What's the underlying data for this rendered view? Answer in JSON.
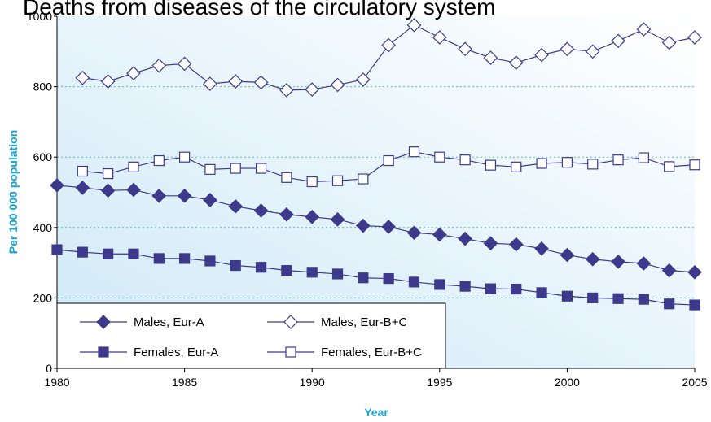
{
  "chart_data": {
    "type": "line",
    "title": "Deaths from diseases of the circulatory system",
    "x_label": "Year",
    "y_label": "Per 100 000 population",
    "x": [
      1980,
      1981,
      1982,
      1983,
      1984,
      1985,
      1986,
      1987,
      1988,
      1989,
      1990,
      1991,
      1992,
      1993,
      1994,
      1995,
      1996,
      1997,
      1998,
      1999,
      2000,
      2001,
      2002,
      2003,
      2004,
      2005
    ],
    "series": [
      {
        "name": "Males, Eur-A",
        "color": "#3d3a8c",
        "marker": "diamond",
        "filled": true,
        "values": [
          520,
          513,
          505,
          507,
          490,
          490,
          478,
          460,
          448,
          437,
          430,
          423,
          405,
          402,
          385,
          380,
          368,
          355,
          352,
          340,
          322,
          310,
          303,
          298,
          278,
          273
        ]
      },
      {
        "name": "Males, Eur-B+C",
        "color": "#3d3a8c",
        "marker": "diamond",
        "filled": false,
        "values": [
          null,
          825,
          815,
          838,
          860,
          865,
          808,
          815,
          812,
          790,
          792,
          805,
          820,
          918,
          975,
          940,
          907,
          882,
          868,
          890,
          907,
          900,
          930,
          963,
          925,
          940
        ]
      },
      {
        "name": "Females, Eur-A",
        "color": "#3d3a8c",
        "marker": "square",
        "filled": true,
        "values": [
          337,
          330,
          325,
          325,
          312,
          312,
          305,
          292,
          287,
          278,
          273,
          268,
          257,
          255,
          245,
          238,
          233,
          226,
          225,
          215,
          205,
          200,
          198,
          196,
          183,
          180
        ]
      },
      {
        "name": "Females, Eur-B+C",
        "color": "#3d3a8c",
        "marker": "square",
        "filled": false,
        "values": [
          null,
          560,
          553,
          572,
          590,
          600,
          565,
          568,
          568,
          542,
          530,
          533,
          538,
          590,
          615,
          600,
          592,
          577,
          572,
          582,
          585,
          580,
          592,
          598,
          573,
          578
        ]
      }
    ],
    "xlim": [
      1980,
      2005
    ],
    "xticks": [
      1980,
      1985,
      1990,
      1995,
      2000,
      2005
    ],
    "ylim": [
      0,
      1000
    ],
    "yticks": [
      0,
      200,
      400,
      600,
      800,
      1000
    ],
    "grid": true,
    "legend": "lower left"
  }
}
